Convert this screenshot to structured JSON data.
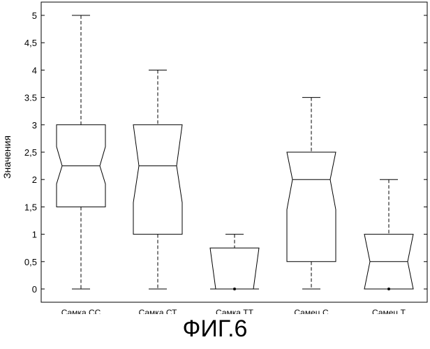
{
  "chart_data": {
    "type": "box",
    "ylabel": "Значения",
    "ylim": [
      -0.25,
      5.25
    ],
    "yticks": [
      0,
      0.5,
      1,
      1.5,
      2,
      2.5,
      3,
      3.5,
      4,
      4.5,
      5
    ],
    "ytick_labels": [
      "0",
      "0,5",
      "1",
      "1,5",
      "2",
      "2,5",
      "3",
      "3.5",
      "4",
      "4,5",
      "5"
    ],
    "categories": [
      "Самка СС",
      "Самка СТ",
      "Самка ТТ",
      "Самец С",
      "Самец Т"
    ],
    "boxes": [
      {
        "whisker_low": 0,
        "q1": 1.5,
        "notch_low": 1.92,
        "median": 2.25,
        "notch_high": 2.6,
        "q3": 3.0,
        "whisker_high": 5.0,
        "outliers": []
      },
      {
        "whisker_low": 0,
        "q1": 1.0,
        "notch_low": 1.58,
        "median": 2.25,
        "notch_high": 3.0,
        "q3": 3.0,
        "whisker_high": 4.0,
        "outliers": []
      },
      {
        "whisker_low": 0,
        "q1": 0.0,
        "notch_low": 0.0,
        "median": 0.0,
        "notch_high": 0.75,
        "q3": 0.75,
        "whisker_high": 1.0,
        "outliers": [
          0
        ]
      },
      {
        "whisker_low": 0,
        "q1": 0.5,
        "notch_low": 1.45,
        "median": 2.0,
        "notch_high": 2.5,
        "q3": 2.5,
        "whisker_high": 3.5,
        "outliers": []
      },
      {
        "whisker_low": 0,
        "q1": 0.0,
        "notch_low": 0.0,
        "median": 0.5,
        "notch_high": 1.0,
        "q3": 1.0,
        "whisker_high": 2.0,
        "outliers": [
          0
        ]
      }
    ]
  },
  "caption": "ФИГ.6"
}
